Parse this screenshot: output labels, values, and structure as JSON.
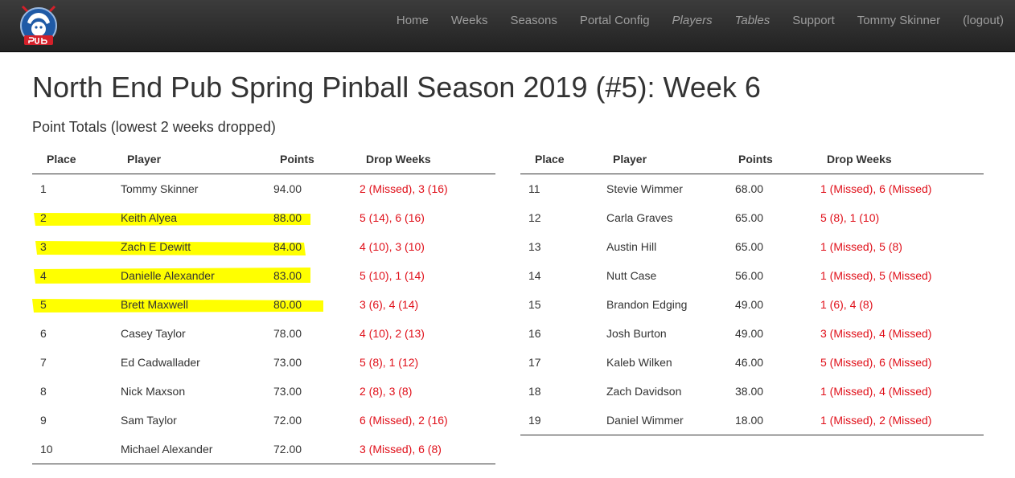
{
  "nav": {
    "logo_alt": "North End Pub logo",
    "items": [
      {
        "label": "Home",
        "style": "normal"
      },
      {
        "label": "Weeks",
        "style": "normal"
      },
      {
        "label": "Seasons",
        "style": "normal"
      },
      {
        "label": "Portal Config",
        "style": "normal"
      },
      {
        "label": "Players",
        "style": "italic"
      },
      {
        "label": "Tables",
        "style": "italic"
      },
      {
        "label": "Support",
        "style": "normal"
      },
      {
        "label": "Tommy Skinner",
        "style": "normal"
      },
      {
        "label": "(logout)",
        "style": "normal"
      }
    ]
  },
  "page": {
    "title": "North End Pub Spring Pinball Season 2019 (#5): Week 6",
    "subtitle": "Point Totals (lowest 2 weeks dropped)"
  },
  "table": {
    "headers": {
      "place": "Place",
      "player": "Player",
      "points": "Points",
      "drop": "Drop Weeks"
    },
    "left_rows": [
      {
        "place": "1",
        "player": "Tommy Skinner",
        "points": "94.00",
        "drop": "2 (Missed), 3 (16)"
      },
      {
        "place": "2",
        "player": "Keith Alyea",
        "points": "88.00",
        "drop": "5 (14), 6 (16)"
      },
      {
        "place": "3",
        "player": "Zach E Dewitt",
        "points": "84.00",
        "drop": "4 (10), 3 (10)"
      },
      {
        "place": "4",
        "player": "Danielle Alexander",
        "points": "83.00",
        "drop": "5 (10), 1 (14)"
      },
      {
        "place": "5",
        "player": "Brett Maxwell",
        "points": "80.00",
        "drop": "3 (6), 4 (14)"
      },
      {
        "place": "6",
        "player": "Casey Taylor",
        "points": "78.00",
        "drop": "4 (10), 2 (13)"
      },
      {
        "place": "7",
        "player": "Ed Cadwallader",
        "points": "73.00",
        "drop": "5 (8), 1 (12)"
      },
      {
        "place": "8",
        "player": "Nick Maxson",
        "points": "73.00",
        "drop": "2 (8), 3 (8)"
      },
      {
        "place": "9",
        "player": "Sam Taylor",
        "points": "72.00",
        "drop": "6 (Missed), 2 (16)"
      },
      {
        "place": "10",
        "player": "Michael Alexander",
        "points": "72.00",
        "drop": "3 (Missed), 6 (8)"
      }
    ],
    "right_rows": [
      {
        "place": "11",
        "player": "Stevie Wimmer",
        "points": "68.00",
        "drop": "1 (Missed), 6 (Missed)"
      },
      {
        "place": "12",
        "player": "Carla Graves",
        "points": "65.00",
        "drop": "5 (8), 1 (10)"
      },
      {
        "place": "13",
        "player": "Austin Hill",
        "points": "65.00",
        "drop": "1 (Missed), 5 (8)"
      },
      {
        "place": "14",
        "player": "Nutt Case",
        "points": "56.00",
        "drop": "1 (Missed), 5 (Missed)"
      },
      {
        "place": "15",
        "player": "Brandon Edging",
        "points": "49.00",
        "drop": "1 (6), 4 (8)"
      },
      {
        "place": "16",
        "player": "Josh Burton",
        "points": "49.00",
        "drop": "3 (Missed), 4 (Missed)"
      },
      {
        "place": "17",
        "player": "Kaleb Wilken",
        "points": "46.00",
        "drop": "5 (Missed), 6 (Missed)"
      },
      {
        "place": "18",
        "player": "Zach Davidson",
        "points": "38.00",
        "drop": "1 (Missed), 4 (Missed)"
      },
      {
        "place": "19",
        "player": "Daniel Wimmer",
        "points": "18.00",
        "drop": "1 (Missed), 2 (Missed)"
      }
    ]
  },
  "highlight": {
    "color": "#ffff00",
    "rows": [
      "2",
      "3",
      "4",
      "5"
    ]
  },
  "colors": {
    "drop_weeks": "#e0101a",
    "nav_bg": "#2b2b2b",
    "nav_link": "#9d9d9d",
    "logo_blue": "#1f5aa6",
    "logo_red": "#d4202a"
  }
}
